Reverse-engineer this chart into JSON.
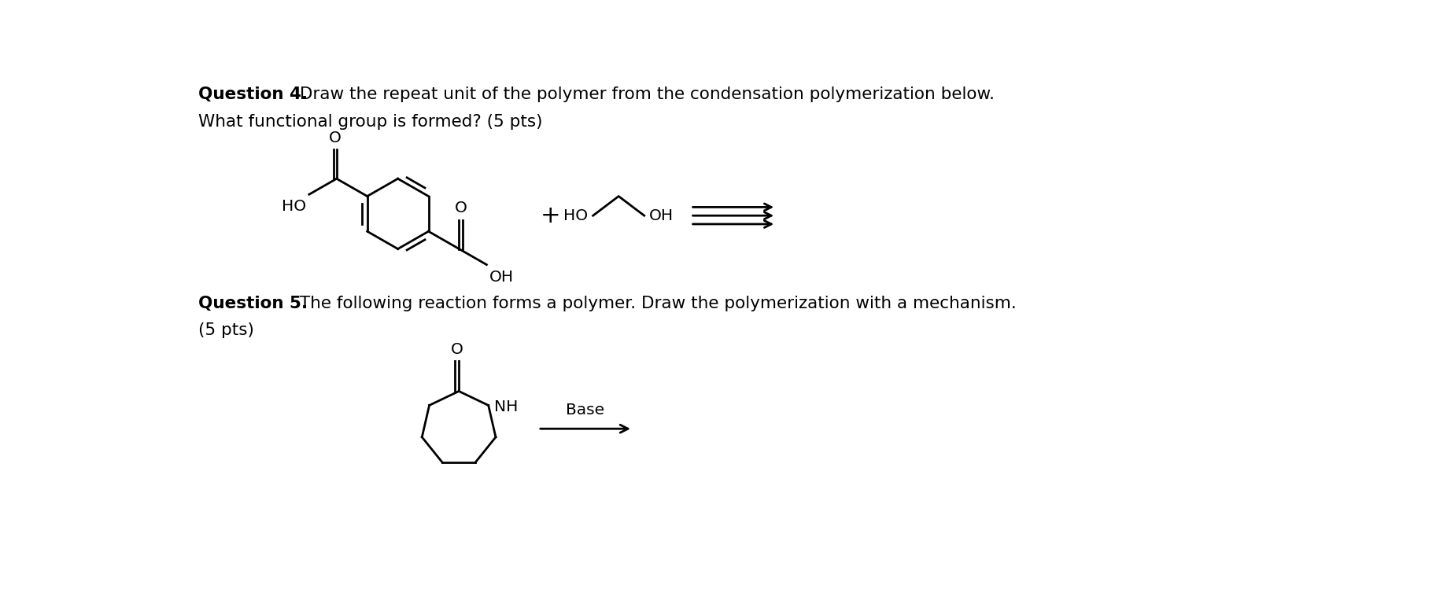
{
  "background_color": "#ffffff",
  "title_q4_bold": "Question 4.",
  "title_q4_rest": " Draw the repeat unit of the polymer from the condensation polymerization below.",
  "title_q4_line2": "What functional group is formed? (5 pts)",
  "title_q5_bold": "Question 5.",
  "title_q5_rest": " The following reaction forms a polymer. Draw the polymerization with a mechanism.",
  "title_q5_line2": "(5 pts)",
  "plus_sign": "+",
  "base_label": "Base",
  "fig_width": 18.44,
  "fig_height": 7.77
}
